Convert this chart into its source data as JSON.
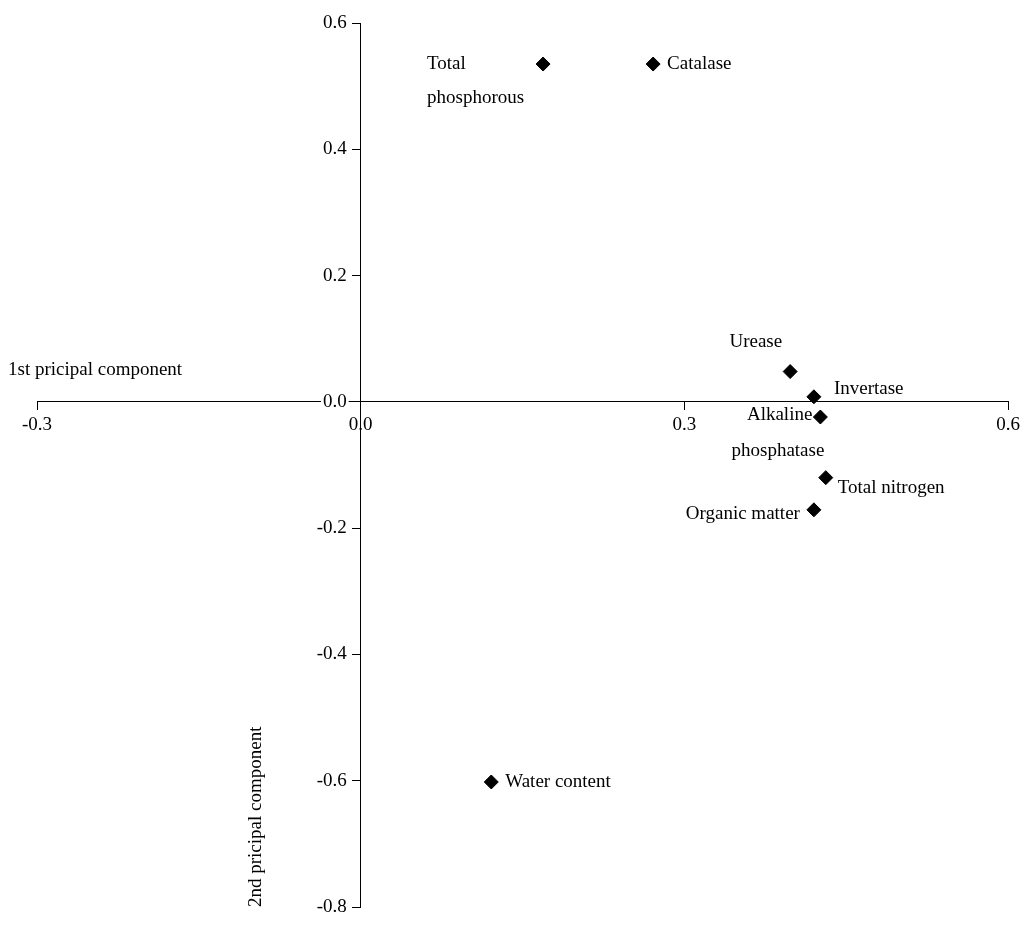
{
  "chart_data": {
    "type": "scatter",
    "xlabel": "1st pricipal component",
    "ylabel": "2nd pricipal component",
    "xlim": [
      -0.3,
      0.6
    ],
    "xticks": [
      {
        "value": -0.3,
        "label": "-0.3"
      },
      {
        "value": 0,
        "label": "0.0"
      },
      {
        "value": 0.3,
        "label": "0.3"
      },
      {
        "value": 0.6,
        "label": "0.6"
      }
    ],
    "ylim": [
      -0.8,
      0.6
    ],
    "yticks": [
      {
        "value": -0.8,
        "label": "-0.8"
      },
      {
        "value": -0.6,
        "label": "-0.6"
      },
      {
        "value": -0.4,
        "label": "-0.4"
      },
      {
        "value": -0.2,
        "label": "-0.2"
      },
      {
        "value": 0,
        "label": "0.0"
      },
      {
        "value": 0.2,
        "label": "0.2"
      },
      {
        "value": 0.4,
        "label": "0.4"
      },
      {
        "value": 0.6,
        "label": "0.6"
      }
    ],
    "grid": false,
    "legend": false,
    "marker": "diamond",
    "series": [
      {
        "name": "Total phosphorous",
        "color": "#000000",
        "x": [
          0.169
        ],
        "values": [
          0.535
        ]
      },
      {
        "name": "Catalase",
        "color": "#000000",
        "x": [
          0.271
        ],
        "values": [
          0.535
        ]
      },
      {
        "name": "Urease",
        "color": "#000000",
        "x": [
          0.398
        ],
        "values": [
          0.048
        ]
      },
      {
        "name": "Invertase",
        "color": "#000000",
        "x": [
          0.42
        ],
        "values": [
          0.008
        ]
      },
      {
        "name": "Alkaline phosphatase",
        "color": "#000000",
        "x": [
          0.426
        ],
        "values": [
          -0.024
        ]
      },
      {
        "name": "Total nitrogen",
        "color": "#000000",
        "x": [
          0.431
        ],
        "values": [
          -0.12
        ]
      },
      {
        "name": "Organic matter",
        "color": "#000000",
        "x": [
          0.42
        ],
        "values": [
          -0.171
        ]
      },
      {
        "name": "Water content",
        "color": "#000000",
        "x": [
          0.121
        ],
        "values": [
          -0.602
        ]
      }
    ]
  }
}
